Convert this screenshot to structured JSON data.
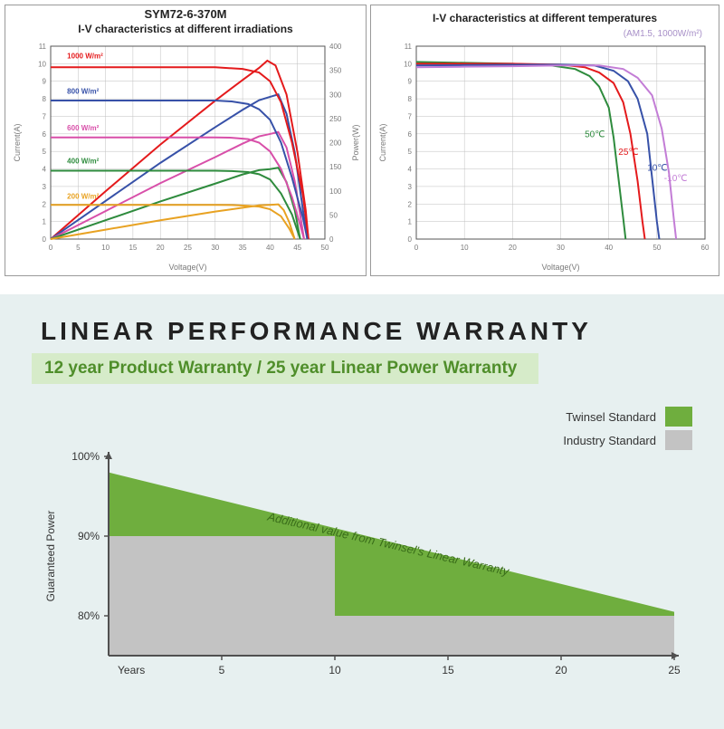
{
  "chart_irradiation": {
    "type": "line",
    "model": "SYM72-6-370M",
    "title": "I-V characteristics at different irradiations",
    "title_fontsize": 12,
    "xlabel": "Voltage(V)",
    "ylabel_left": "Current(A)",
    "ylabel_right": "Power(W)",
    "label_fontsize": 9,
    "tick_fontsize": 8,
    "tick_color": "#7a7a7a",
    "xlim": [
      0,
      50
    ],
    "xtick_step": 5,
    "ylim_left": [
      0,
      11
    ],
    "ytick_left_step": 1,
    "ylim_right": [
      0,
      400
    ],
    "ytick_right_step": 50,
    "grid_color": "#bfbfbf",
    "background_color": "#ffffff",
    "line_width": 2,
    "iv_series": [
      {
        "label": "1000 W/m²",
        "color": "#e41a1c",
        "label_x": 3,
        "label_y": 10.3,
        "pts": [
          [
            0,
            9.8
          ],
          [
            5,
            9.8
          ],
          [
            10,
            9.8
          ],
          [
            15,
            9.8
          ],
          [
            20,
            9.8
          ],
          [
            25,
            9.8
          ],
          [
            30,
            9.8
          ],
          [
            35,
            9.7
          ],
          [
            38,
            9.5
          ],
          [
            40,
            9.0
          ],
          [
            42,
            7.8
          ],
          [
            44,
            5.5
          ],
          [
            46,
            2.5
          ],
          [
            47,
            0
          ]
        ]
      },
      {
        "label": "800 W/m²",
        "color": "#3751a8",
        "label_x": 3,
        "label_y": 8.3,
        "pts": [
          [
            0,
            7.9
          ],
          [
            5,
            7.9
          ],
          [
            10,
            7.9
          ],
          [
            15,
            7.9
          ],
          [
            20,
            7.9
          ],
          [
            25,
            7.9
          ],
          [
            30,
            7.9
          ],
          [
            33,
            7.85
          ],
          [
            36,
            7.7
          ],
          [
            38,
            7.4
          ],
          [
            40,
            6.8
          ],
          [
            42,
            5.5
          ],
          [
            44,
            3.5
          ],
          [
            46,
            1.2
          ],
          [
            46.8,
            0
          ]
        ]
      },
      {
        "label": "600 W/m²",
        "color": "#d84fa9",
        "label_x": 3,
        "label_y": 6.2,
        "pts": [
          [
            0,
            5.8
          ],
          [
            5,
            5.8
          ],
          [
            10,
            5.8
          ],
          [
            15,
            5.8
          ],
          [
            20,
            5.8
          ],
          [
            25,
            5.8
          ],
          [
            30,
            5.8
          ],
          [
            33,
            5.78
          ],
          [
            36,
            5.7
          ],
          [
            38,
            5.5
          ],
          [
            40,
            5.0
          ],
          [
            42,
            4.0
          ],
          [
            44,
            2.4
          ],
          [
            45.5,
            0.8
          ],
          [
            46.2,
            0
          ]
        ]
      },
      {
        "label": "400 W/m²",
        "color": "#2e8b3d",
        "label_x": 3,
        "label_y": 4.3,
        "pts": [
          [
            0,
            3.9
          ],
          [
            5,
            3.9
          ],
          [
            10,
            3.9
          ],
          [
            15,
            3.9
          ],
          [
            20,
            3.9
          ],
          [
            25,
            3.9
          ],
          [
            30,
            3.9
          ],
          [
            33,
            3.88
          ],
          [
            36,
            3.82
          ],
          [
            38,
            3.7
          ],
          [
            40,
            3.4
          ],
          [
            42,
            2.6
          ],
          [
            44,
            1.4
          ],
          [
            45.5,
            0
          ]
        ]
      },
      {
        "label": "200 W/m²",
        "color": "#e8a222",
        "label_x": 3,
        "label_y": 2.3,
        "pts": [
          [
            0,
            1.95
          ],
          [
            5,
            1.95
          ],
          [
            10,
            1.95
          ],
          [
            15,
            1.95
          ],
          [
            20,
            1.95
          ],
          [
            25,
            1.95
          ],
          [
            30,
            1.95
          ],
          [
            33,
            1.94
          ],
          [
            36,
            1.9
          ],
          [
            38,
            1.85
          ],
          [
            40,
            1.7
          ],
          [
            42,
            1.3
          ],
          [
            43.5,
            0.6
          ],
          [
            44.5,
            0
          ]
        ]
      }
    ],
    "pv_series": [
      {
        "color": "#e41a1c",
        "pts": [
          [
            0,
            0
          ],
          [
            10,
            99
          ],
          [
            20,
            196
          ],
          [
            30,
            287
          ],
          [
            35,
            330
          ],
          [
            38,
            355
          ],
          [
            39.5,
            370
          ],
          [
            41,
            360
          ],
          [
            43,
            300
          ],
          [
            45,
            180
          ],
          [
            46.5,
            60
          ],
          [
            47,
            0
          ]
        ]
      },
      {
        "color": "#3751a8",
        "pts": [
          [
            0,
            0
          ],
          [
            10,
            79
          ],
          [
            20,
            158
          ],
          [
            30,
            232
          ],
          [
            35,
            268
          ],
          [
            38,
            288
          ],
          [
            40,
            295
          ],
          [
            41.5,
            300
          ],
          [
            43,
            260
          ],
          [
            44.5,
            180
          ],
          [
            46,
            60
          ],
          [
            46.8,
            0
          ]
        ]
      },
      {
        "color": "#d84fa9",
        "pts": [
          [
            0,
            0
          ],
          [
            10,
            58
          ],
          [
            20,
            116
          ],
          [
            30,
            170
          ],
          [
            35,
            198
          ],
          [
            38,
            213
          ],
          [
            40,
            218
          ],
          [
            41.5,
            222
          ],
          [
            43,
            190
          ],
          [
            44.5,
            120
          ],
          [
            45.5,
            50
          ],
          [
            46.2,
            0
          ]
        ]
      },
      {
        "color": "#2e8b3d",
        "pts": [
          [
            0,
            0
          ],
          [
            10,
            39
          ],
          [
            20,
            78
          ],
          [
            30,
            115
          ],
          [
            35,
            134
          ],
          [
            38,
            143
          ],
          [
            40,
            145
          ],
          [
            41.5,
            148
          ],
          [
            43,
            118
          ],
          [
            44.5,
            60
          ],
          [
            45.5,
            0
          ]
        ]
      },
      {
        "color": "#e8a222",
        "pts": [
          [
            0,
            0
          ],
          [
            10,
            19.5
          ],
          [
            20,
            39
          ],
          [
            30,
            57
          ],
          [
            35,
            65
          ],
          [
            38,
            70
          ],
          [
            40,
            71
          ],
          [
            41.5,
            72
          ],
          [
            42.5,
            60
          ],
          [
            43.5,
            35
          ],
          [
            44.5,
            0
          ]
        ]
      }
    ]
  },
  "chart_temperature": {
    "type": "line",
    "title": "I-V characteristics at different temperatures",
    "subtitle": "(AM1.5, 1000W/m²)",
    "subtitle_color": "#a890c8",
    "title_fontsize": 12,
    "xlabel": "Voltage(V)",
    "ylabel": "Current(A)",
    "label_fontsize": 9,
    "tick_fontsize": 8,
    "tick_color": "#7a7a7a",
    "xlim": [
      0,
      60
    ],
    "xtick_step": 10,
    "ylim": [
      0,
      11
    ],
    "ytick_step": 1,
    "grid_color": "#bfbfbf",
    "background_color": "#ffffff",
    "line_width": 2,
    "series": [
      {
        "label": "50℃",
        "color": "#2e8b3d",
        "label_x": 35,
        "label_y": 5.8,
        "pts": [
          [
            0,
            10.1
          ],
          [
            10,
            10.05
          ],
          [
            20,
            10.0
          ],
          [
            28,
            9.9
          ],
          [
            33,
            9.7
          ],
          [
            36,
            9.3
          ],
          [
            38,
            8.7
          ],
          [
            40,
            7.5
          ],
          [
            41,
            5.8
          ],
          [
            42,
            3.5
          ],
          [
            43,
            1.2
          ],
          [
            43.5,
            0
          ]
        ]
      },
      {
        "label": "25℃",
        "color": "#e41a1c",
        "label_x": 42,
        "label_y": 4.8,
        "pts": [
          [
            0,
            10.0
          ],
          [
            10,
            10.0
          ],
          [
            20,
            10.0
          ],
          [
            30,
            9.95
          ],
          [
            35,
            9.8
          ],
          [
            38,
            9.5
          ],
          [
            41,
            8.9
          ],
          [
            43,
            7.8
          ],
          [
            44.5,
            6.0
          ],
          [
            46,
            3.3
          ],
          [
            47,
            1.0
          ],
          [
            47.5,
            0
          ]
        ]
      },
      {
        "label": "10℃",
        "color": "#3751a8",
        "label_x": 48,
        "label_y": 3.9,
        "pts": [
          [
            0,
            9.9
          ],
          [
            10,
            9.92
          ],
          [
            20,
            9.94
          ],
          [
            30,
            9.95
          ],
          [
            37,
            9.9
          ],
          [
            41,
            9.6
          ],
          [
            44,
            9.0
          ],
          [
            46,
            8.0
          ],
          [
            48,
            6.0
          ],
          [
            49,
            3.5
          ],
          [
            50,
            1.0
          ],
          [
            50.5,
            0
          ]
        ]
      },
      {
        "label": "-10℃",
        "color": "#c37dd6",
        "label_x": 51.5,
        "label_y": 3.3,
        "pts": [
          [
            0,
            9.8
          ],
          [
            10,
            9.83
          ],
          [
            20,
            9.86
          ],
          [
            30,
            9.9
          ],
          [
            38,
            9.9
          ],
          [
            43,
            9.7
          ],
          [
            46,
            9.2
          ],
          [
            49,
            8.2
          ],
          [
            51,
            6.3
          ],
          [
            52.5,
            3.8
          ],
          [
            53.5,
            1.2
          ],
          [
            54,
            0
          ]
        ]
      }
    ]
  },
  "warranty": {
    "title": "LINEAR PERFORMANCE WARRANTY",
    "subtitle": "12 year Product Warranty / 25 year Linear Power Warranty",
    "overlay_text": "Additional value from Twinsel's Linear Warranty",
    "overlay_color": "#3a6e1a",
    "ylabel": "Guaranteed Power",
    "xlabel_first": "Years",
    "xticks": [
      5,
      10,
      15,
      20,
      25
    ],
    "yticks": [
      80,
      90,
      100
    ],
    "ylim": [
      75,
      100
    ],
    "xlim": [
      0,
      25
    ],
    "twinsel_color": "#6fae3e",
    "industry_color": "#c3c3c3",
    "axis_color": "#505050",
    "tick_fontsize": 12,
    "label_fontsize": 12,
    "legend": [
      {
        "label": "Twinsel Standard",
        "color": "#6fae3e"
      },
      {
        "label": "Industry Standard",
        "color": "#c3c3c3"
      }
    ],
    "twinsel_poly": [
      [
        0,
        98
      ],
      [
        25,
        80.5
      ],
      [
        25,
        75
      ],
      [
        0,
        75
      ]
    ],
    "industry_poly": [
      [
        0,
        90
      ],
      [
        10,
        90
      ],
      [
        10,
        80
      ],
      [
        25,
        80
      ],
      [
        25,
        75
      ],
      [
        0,
        75
      ]
    ]
  }
}
